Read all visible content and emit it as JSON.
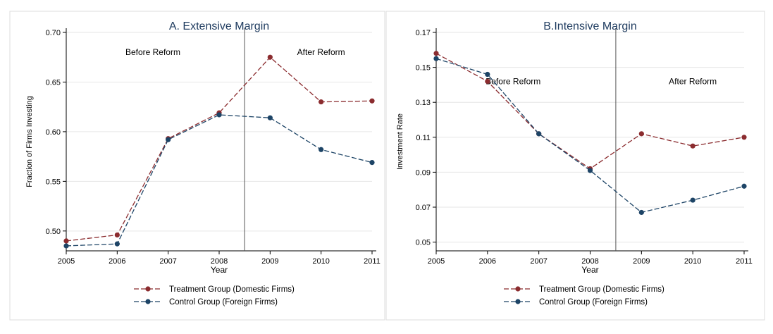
{
  "colors": {
    "treatment": "#8b2c2f",
    "control": "#1d4466",
    "axis": "#000000",
    "grid": "#e6e6e6",
    "divider": "#555555",
    "panel_border": "#dddddd",
    "title": "#1d3a5e"
  },
  "chart_data": [
    {
      "type": "line",
      "title": "A. Extensive Margin",
      "xlabel": "Year",
      "ylabel": "Fraction of Firms Investing",
      "x": [
        2005,
        2006,
        2007,
        2008,
        2009,
        2010,
        2011
      ],
      "xlim": [
        2005,
        2011
      ],
      "ylim": [
        0.48,
        0.7
      ],
      "yticks": [
        0.5,
        0.55,
        0.6,
        0.65,
        0.7
      ],
      "ytick_labels": [
        "0.50",
        "0.55",
        "0.60",
        "0.65",
        "0.70"
      ],
      "reform_line_x": 2008.5,
      "annotations": [
        {
          "text": "Before Reform",
          "x": 2006.7,
          "y": 0.68
        },
        {
          "text": "After Reform",
          "x": 2010.0,
          "y": 0.68
        }
      ],
      "grid": true,
      "legend": "bottom",
      "series": [
        {
          "name": "Treatment Group (Domestic Firms)",
          "color_key": "treatment",
          "values": [
            0.49,
            0.496,
            0.593,
            0.619,
            0.675,
            0.63,
            0.631
          ]
        },
        {
          "name": "Control Group (Foreign Firms)",
          "color_key": "control",
          "values": [
            0.485,
            0.487,
            0.592,
            0.617,
            0.614,
            0.582,
            0.569
          ]
        }
      ]
    },
    {
      "type": "line",
      "title": "B.Intensive Margin",
      "xlabel": "Year",
      "ylabel": "Investment Rate",
      "x": [
        2005,
        2006,
        2007,
        2008,
        2009,
        2010,
        2011
      ],
      "xlim": [
        2005,
        2011
      ],
      "ylim": [
        0.045,
        0.17
      ],
      "yticks": [
        0.05,
        0.07,
        0.09,
        0.11,
        0.13,
        0.15,
        0.17
      ],
      "ytick_labels": [
        "0.05",
        "0.07",
        "0.09",
        "0.11",
        "0.13",
        "0.15",
        "0.17"
      ],
      "reform_line_x": 2008.5,
      "annotations": [
        {
          "text": "Before Reform",
          "x": 2006.5,
          "y": 0.142
        },
        {
          "text": "After Reform",
          "x": 2010.0,
          "y": 0.142
        }
      ],
      "grid": true,
      "legend": "bottom",
      "series": [
        {
          "name": "Treatment Group (Domestic Firms)",
          "color_key": "treatment",
          "values": [
            0.158,
            0.142,
            0.112,
            0.092,
            0.112,
            0.105,
            0.11
          ]
        },
        {
          "name": "Control Group (Foreign Firms)",
          "color_key": "control",
          "values": [
            0.155,
            0.146,
            0.112,
            0.091,
            0.067,
            0.074,
            0.082
          ]
        }
      ]
    }
  ]
}
